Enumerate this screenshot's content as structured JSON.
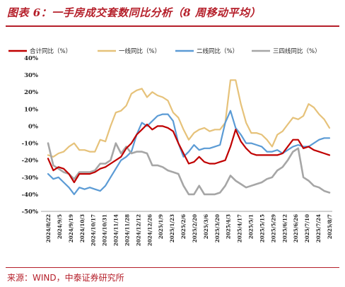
{
  "figure": {
    "title": "图表 6：一手房成交套数同比分析（8 周移动平均）",
    "source": "来源：WIND，中泰证券研究所"
  },
  "colors": {
    "title": "#b51f2a",
    "s1": "#c00000",
    "s2": "#e6c27a",
    "s3": "#5b9bd5",
    "s4": "#a6a6a6"
  },
  "chart_data": {
    "type": "line",
    "ylim": [
      -50,
      40
    ],
    "yticks": [
      "40%",
      "30%",
      "20%",
      "10%",
      "0%",
      "-10%",
      "-20%",
      "-30%",
      "-40%",
      "-50%"
    ],
    "xtick_labels": [
      "2024/8/22",
      "2024/9/5",
      "2024/9/19",
      "2024/10/3",
      "2024/10/17",
      "2024/10/31",
      "2024/11/14",
      "2024/11/28",
      "2024/12/12",
      "2024/12/26",
      "2025/1/9",
      "2025/1/23",
      "2025/2/6",
      "2025/2/20",
      "2025/3/6",
      "2025/3/20",
      "2025/4/3",
      "2025/4/17",
      "2025/5/1",
      "2025/5/15",
      "2025/5/29",
      "2025/6/12",
      "2025/6/26",
      "2025/7/10",
      "2025/7/24",
      "2025/8/7"
    ],
    "legend_position": "top",
    "series": [
      {
        "name": "合计同比（%）",
        "values": [
          -19,
          -26,
          -24,
          -25,
          -28,
          -33,
          -28,
          -28,
          -28,
          -27,
          -25,
          -24,
          -22,
          -20,
          -18,
          -13,
          -10,
          -5,
          -2,
          1,
          -2,
          0,
          0,
          -1,
          -3,
          -10,
          -16,
          -22,
          -21,
          -18,
          -21,
          -22,
          -22,
          -21,
          -20,
          -12,
          -2,
          -9,
          -13,
          -16,
          -17,
          -17,
          -17,
          -17,
          -17,
          -16,
          -12,
          -8,
          -8,
          -13,
          -12,
          -14,
          -15,
          -16,
          -17
        ]
      },
      {
        "name": "一线同比（%）",
        "values": [
          -17,
          -18,
          -16,
          -15,
          -12,
          -10,
          -14,
          -14,
          -15,
          -15,
          -8,
          -9,
          0,
          8,
          9,
          12,
          19,
          21,
          22,
          17,
          20,
          18,
          17,
          15,
          8,
          5,
          -2,
          -8,
          -4,
          -2,
          -1,
          -3,
          -2,
          -2,
          2,
          27,
          27,
          13,
          2,
          -4,
          -4,
          -5,
          -8,
          -12,
          -5,
          -3,
          1,
          5,
          4,
          6,
          13,
          11,
          7,
          4,
          -1
        ]
      },
      {
        "name": "二线同比（%）",
        "values": [
          -28,
          -31,
          -30,
          -33,
          -36,
          -40,
          -36,
          -37,
          -36,
          -37,
          -38,
          -35,
          -30,
          -25,
          -20,
          -18,
          -15,
          -5,
          2,
          0,
          3,
          6,
          7,
          7,
          3,
          -10,
          -18,
          -15,
          -11,
          -14,
          -13,
          -13,
          -12,
          -11,
          2,
          9,
          -1,
          -5,
          -10,
          -10,
          -11,
          -12,
          -15,
          -15,
          -14,
          -16,
          -14,
          -12,
          -11,
          -12,
          -12,
          -10,
          -8,
          -7,
          -7
        ]
      },
      {
        "name": "三四线同比（%）",
        "values": [
          -10,
          -23,
          -25,
          -27,
          -28,
          -31,
          -27,
          -27,
          -27,
          -26,
          -22,
          -22,
          -20,
          -10,
          -16,
          -12,
          -16,
          -15,
          -15,
          -16,
          -23,
          -23,
          -24,
          -26,
          -27,
          -28,
          -35,
          -40,
          -40,
          -35,
          -40,
          -40,
          -40,
          -39,
          -35,
          -29,
          -32,
          -34,
          -36,
          -35,
          -34,
          -33,
          -31,
          -30,
          -26,
          -24,
          -20,
          -15,
          -13,
          -30,
          -32,
          -35,
          -36,
          -38,
          -39
        ]
      }
    ]
  }
}
